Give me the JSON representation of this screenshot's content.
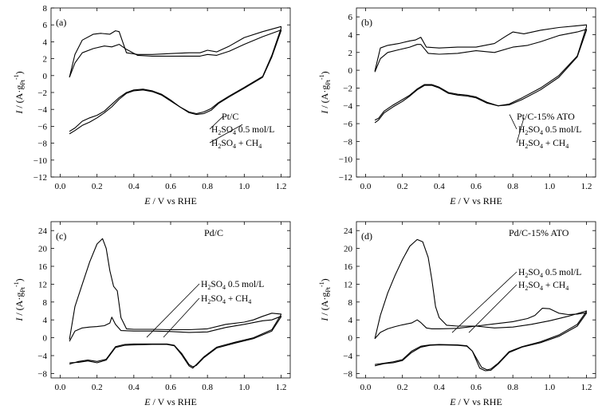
{
  "figure": {
    "description_free": true
  },
  "chart_data": [
    {
      "id": "a",
      "type": "line",
      "panel_label": "(a)",
      "sample": "Pt/C",
      "xlabel_var": "E",
      "xlabel_rest": " / V vs RHE",
      "ylabel_var": "I",
      "ylabel_unit": "(A·g",
      "ylabel_sub": "Pt",
      "ylabel_sup": "-1",
      "xlim": [
        -0.05,
        1.25
      ],
      "ylim": [
        -12,
        8
      ],
      "xticks": [
        0.0,
        0.2,
        0.4,
        0.6,
        0.8,
        1.0,
        1.2
      ],
      "xtick_labels": [
        "0.0",
        "0.2",
        "0.4",
        "0.6",
        "0.8",
        "1.0",
        "1.2"
      ],
      "yticks": [
        -12,
        -10,
        -8,
        -6,
        -4,
        -2,
        0,
        2,
        4,
        6,
        8
      ],
      "ytick_labels": [
        "−12",
        "−10",
        "−8",
        "−6",
        "−4",
        "−2",
        "0",
        "2",
        "4",
        "6",
        "8"
      ],
      "legend": [
        {
          "text": "H2SO4 0.5 mol/L",
          "sub_h": "2",
          "sub_o": "4",
          "base_a": "H",
          "base_b": "SO",
          "tail": " 0.5 mol/L"
        },
        {
          "text": "H2SO4 + CH4",
          "sub_h": "2",
          "sub_o": "4",
          "base_a": "H",
          "base_b": "SO",
          "tail": " + CH",
          "tail_sub": "4"
        }
      ],
      "series": [
        {
          "name": "H2SO4 0.5 mol/L",
          "x": [
            0.05,
            0.08,
            0.12,
            0.18,
            0.24,
            0.28,
            0.32,
            0.36,
            0.42,
            0.5,
            0.6,
            0.7,
            0.76,
            0.8,
            0.85,
            0.92,
            1.0,
            1.1,
            1.2,
            1.2,
            1.15,
            1.1,
            1.0,
            0.92,
            0.86,
            0.82,
            0.78,
            0.74,
            0.7,
            0.65,
            0.6,
            0.55,
            0.5,
            0.45,
            0.4,
            0.36,
            0.32,
            0.28,
            0.24,
            0.2,
            0.16,
            0.12,
            0.08,
            0.05
          ],
          "y": [
            -0.2,
            1.5,
            2.7,
            3.2,
            3.5,
            3.4,
            3.7,
            3.1,
            2.4,
            2.3,
            2.3,
            2.3,
            2.3,
            2.5,
            2.4,
            2.9,
            3.7,
            4.6,
            5.4,
            5.3,
            2.2,
            -0.2,
            -1.5,
            -2.5,
            -3.3,
            -4.1,
            -4.5,
            -4.6,
            -4.4,
            -3.7,
            -2.9,
            -2.2,
            -1.8,
            -1.6,
            -1.7,
            -2.0,
            -2.6,
            -3.4,
            -4.2,
            -4.7,
            -5.0,
            -5.4,
            -6.2,
            -6.6
          ]
        },
        {
          "name": "H2SO4 + CH4",
          "x": [
            0.05,
            0.08,
            0.12,
            0.18,
            0.22,
            0.27,
            0.3,
            0.32,
            0.36,
            0.42,
            0.5,
            0.6,
            0.7,
            0.76,
            0.8,
            0.85,
            0.92,
            1.0,
            1.1,
            1.2,
            1.2,
            1.15,
            1.1,
            1.0,
            0.92,
            0.86,
            0.82,
            0.78,
            0.74,
            0.7,
            0.65,
            0.6,
            0.55,
            0.5,
            0.45,
            0.4,
            0.36,
            0.32,
            0.28,
            0.24,
            0.2,
            0.16,
            0.12,
            0.08,
            0.05
          ],
          "y": [
            -0.2,
            2.5,
            4.2,
            4.9,
            5.0,
            4.9,
            5.3,
            5.2,
            2.7,
            2.5,
            2.5,
            2.6,
            2.7,
            2.7,
            3.0,
            2.8,
            3.5,
            4.5,
            5.2,
            5.8,
            5.6,
            2.4,
            -0.1,
            -1.4,
            -2.4,
            -3.2,
            -3.9,
            -4.3,
            -4.5,
            -4.3,
            -3.7,
            -3.0,
            -2.3,
            -1.9,
            -1.7,
            -1.8,
            -2.1,
            -2.8,
            -3.7,
            -4.4,
            -5.0,
            -5.5,
            -5.9,
            -6.5,
            -6.9
          ]
        }
      ]
    },
    {
      "id": "b",
      "type": "line",
      "panel_label": "(b)",
      "sample": "Pt/C-15% ATO",
      "xlabel_var": "E",
      "xlabel_rest": " / V vs RHE",
      "ylabel_var": "I",
      "ylabel_unit": "(A·g",
      "ylabel_sub": "Pt",
      "ylabel_sup": "-1",
      "xlim": [
        -0.05,
        1.25
      ],
      "ylim": [
        -12,
        7
      ],
      "xticks": [
        0.0,
        0.2,
        0.4,
        0.6,
        0.8,
        1.0,
        1.2
      ],
      "xtick_labels": [
        "0.0",
        "0.2",
        "0.4",
        "0.6",
        "0.8",
        "1.0",
        "1.2"
      ],
      "yticks": [
        -12,
        -10,
        -8,
        -6,
        -4,
        -2,
        0,
        2,
        4,
        6
      ],
      "ytick_labels": [
        "−12",
        "−10",
        "−8",
        "−6",
        "−4",
        "−2",
        "0",
        "2",
        "4",
        "6"
      ],
      "legend": [
        {
          "text": "H2SO4 0.5 mol/L",
          "sub_h": "2",
          "sub_o": "4",
          "base_a": "H",
          "base_b": "SO",
          "tail": " 0.5 mol/L"
        },
        {
          "text": "H2SO4 + CH4",
          "sub_h": "2",
          "sub_o": "4",
          "base_a": "H",
          "base_b": "SO",
          "tail": " + CH",
          "tail_sub": "4"
        }
      ],
      "series": [
        {
          "name": "H2SO4 0.5 mol/L",
          "x": [
            0.05,
            0.08,
            0.12,
            0.18,
            0.24,
            0.28,
            0.3,
            0.34,
            0.4,
            0.5,
            0.6,
            0.7,
            0.8,
            0.88,
            0.95,
            1.05,
            1.15,
            1.2,
            1.2,
            1.15,
            1.05,
            0.95,
            0.85,
            0.78,
            0.72,
            0.66,
            0.6,
            0.55,
            0.5,
            0.45,
            0.4,
            0.36,
            0.32,
            0.28,
            0.24,
            0.2,
            0.15,
            0.1,
            0.07,
            0.05
          ],
          "y": [
            -0.2,
            1.3,
            2.0,
            2.3,
            2.6,
            2.9,
            2.9,
            1.9,
            1.8,
            1.9,
            2.2,
            2.0,
            2.6,
            2.8,
            3.2,
            3.9,
            4.3,
            4.6,
            4.5,
            1.5,
            -0.8,
            -2.2,
            -3.3,
            -3.9,
            -4.0,
            -3.6,
            -3.0,
            -2.8,
            -2.7,
            -2.5,
            -1.9,
            -1.6,
            -1.6,
            -2.1,
            -2.8,
            -3.3,
            -3.9,
            -4.6,
            -5.4,
            -5.6
          ]
        },
        {
          "name": "H2SO4 + CH4",
          "x": [
            0.05,
            0.08,
            0.12,
            0.18,
            0.24,
            0.27,
            0.3,
            0.33,
            0.4,
            0.5,
            0.6,
            0.7,
            0.76,
            0.8,
            0.86,
            0.95,
            1.05,
            1.15,
            1.2,
            1.2,
            1.15,
            1.05,
            0.95,
            0.85,
            0.78,
            0.72,
            0.66,
            0.6,
            0.55,
            0.5,
            0.45,
            0.4,
            0.36,
            0.32,
            0.28,
            0.24,
            0.2,
            0.15,
            0.1,
            0.07,
            0.05
          ],
          "y": [
            -0.1,
            2.5,
            2.8,
            3.0,
            3.3,
            3.4,
            3.7,
            2.6,
            2.5,
            2.6,
            2.6,
            3.0,
            3.8,
            4.3,
            4.1,
            4.5,
            4.8,
            5.0,
            5.1,
            4.9,
            1.6,
            -0.6,
            -2.0,
            -3.1,
            -3.8,
            -4.0,
            -3.7,
            -3.1,
            -2.9,
            -2.8,
            -2.6,
            -2.0,
            -1.7,
            -1.7,
            -2.2,
            -2.9,
            -3.5,
            -4.1,
            -4.8,
            -5.6,
            -5.9
          ]
        }
      ]
    },
    {
      "id": "c",
      "type": "line",
      "panel_label": "(c)",
      "sample": "Pd/C",
      "xlabel_var": "E",
      "xlabel_rest": " / V vs RHE",
      "ylabel_var": "I",
      "ylabel_unit": "(A·g",
      "ylabel_sub": "Pt",
      "ylabel_sup": "-1",
      "xlim": [
        -0.05,
        1.25
      ],
      "ylim": [
        -9,
        26
      ],
      "xticks": [
        0.0,
        0.2,
        0.4,
        0.6,
        0.8,
        1.0,
        1.2
      ],
      "xtick_labels": [
        "0.0",
        "0.2",
        "0.4",
        "0.6",
        "0.8",
        "1.0",
        "1.2"
      ],
      "yticks": [
        -8,
        -4,
        0,
        4,
        8,
        12,
        16,
        20,
        24
      ],
      "ytick_labels": [
        "−8",
        "−4",
        "0",
        "4",
        "8",
        "12",
        "16",
        "20",
        "24"
      ],
      "legend": [
        {
          "text": "H2SO4 0.5 mol/L",
          "sub_h": "2",
          "sub_o": "4",
          "base_a": "H",
          "base_b": "SO",
          "tail": " 0.5 mol/L"
        },
        {
          "text": "H2SO4 + CH4",
          "sub_h": "2",
          "sub_o": "4",
          "base_a": "H",
          "base_b": "SO",
          "tail": " + CH",
          "tail_sub": "4"
        }
      ],
      "series": [
        {
          "name": "H2SO4 0.5 mol/L",
          "x": [
            0.05,
            0.08,
            0.12,
            0.16,
            0.2,
            0.24,
            0.27,
            0.28,
            0.3,
            0.33,
            0.4,
            0.5,
            0.6,
            0.7,
            0.8,
            0.9,
            1.0,
            1.1,
            1.15,
            1.2,
            1.2,
            1.15,
            1.05,
            0.95,
            0.85,
            0.78,
            0.74,
            0.72,
            0.7,
            0.66,
            0.62,
            0.58,
            0.5,
            0.4,
            0.35,
            0.3,
            0.25,
            0.2,
            0.15,
            0.1,
            0.05
          ],
          "y": [
            -0.8,
            1.5,
            2.2,
            2.4,
            2.5,
            2.7,
            3.3,
            4.6,
            3.0,
            1.6,
            1.5,
            1.5,
            1.4,
            1.2,
            1.3,
            2.3,
            3.0,
            3.8,
            4.0,
            4.8,
            4.7,
            1.5,
            -0.2,
            -1.2,
            -2.3,
            -4.5,
            -6.2,
            -6.5,
            -6.0,
            -3.5,
            -1.7,
            -1.4,
            -1.4,
            -1.4,
            -1.5,
            -2.0,
            -4.8,
            -5.3,
            -5.0,
            -5.3,
            -5.9
          ]
        },
        {
          "name": "H2SO4 + CH4",
          "x": [
            0.05,
            0.08,
            0.12,
            0.16,
            0.2,
            0.23,
            0.25,
            0.27,
            0.29,
            0.31,
            0.33,
            0.36,
            0.4,
            0.5,
            0.6,
            0.7,
            0.8,
            0.9,
            1.0,
            1.05,
            1.1,
            1.15,
            1.2,
            1.2,
            1.15,
            1.05,
            0.95,
            0.85,
            0.78,
            0.74,
            0.72,
            0.7,
            0.66,
            0.62,
            0.58,
            0.5,
            0.4,
            0.35,
            0.3,
            0.25,
            0.2,
            0.15,
            0.1,
            0.05
          ],
          "y": [
            -0.4,
            7.0,
            12.0,
            17.0,
            21.0,
            22.2,
            20.0,
            15.0,
            11.5,
            10.5,
            4.5,
            2.0,
            1.9,
            1.9,
            1.8,
            1.8,
            2.0,
            3.0,
            3.5,
            4.0,
            4.8,
            5.5,
            5.3,
            5.2,
            1.8,
            0.0,
            -1.0,
            -2.1,
            -4.3,
            -6.0,
            -6.8,
            -6.3,
            -3.8,
            -1.8,
            -1.5,
            -1.5,
            -1.6,
            -1.7,
            -2.2,
            -5.0,
            -5.6,
            -5.2,
            -5.5,
            -5.6
          ]
        }
      ]
    },
    {
      "id": "d",
      "type": "line",
      "panel_label": "(d)",
      "sample": "Pd/C-15% ATO",
      "xlabel_var": "E",
      "xlabel_rest": " / V vs RHE",
      "ylabel_var": "I",
      "ylabel_unit": "(A·g",
      "ylabel_sub": "Pt",
      "ylabel_sup": "-1",
      "xlim": [
        -0.05,
        1.25
      ],
      "ylim": [
        -9,
        26
      ],
      "xticks": [
        0.0,
        0.2,
        0.4,
        0.6,
        0.8,
        1.0,
        1.2
      ],
      "xtick_labels": [
        "0.0",
        "0.2",
        "0.4",
        "0.6",
        "0.8",
        "1.0",
        "1.2"
      ],
      "yticks": [
        -8,
        -4,
        0,
        4,
        8,
        12,
        16,
        20,
        24
      ],
      "ytick_labels": [
        "−8",
        "−4",
        "0",
        "4",
        "8",
        "12",
        "16",
        "20",
        "24"
      ],
      "legend": [
        {
          "text": "H2SO4 0.5 mol/L",
          "sub_h": "2",
          "sub_o": "4",
          "base_a": "H",
          "base_b": "SO",
          "tail": " 0.5 mol/L"
        },
        {
          "text": "H2SO4 + CH4",
          "sub_h": "2",
          "sub_o": "4",
          "base_a": "H",
          "base_b": "SO",
          "tail": " + CH",
          "tail_sub": "4"
        }
      ],
      "series": [
        {
          "name": "H2SO4 0.5 mol/L",
          "x": [
            0.05,
            0.08,
            0.12,
            0.16,
            0.2,
            0.25,
            0.28,
            0.3,
            0.33,
            0.36,
            0.4,
            0.5,
            0.6,
            0.7,
            0.8,
            0.88,
            0.92,
            0.96,
            1.0,
            1.05,
            1.1,
            1.15,
            1.2,
            1.2,
            1.15,
            1.05,
            0.95,
            0.85,
            0.78,
            0.72,
            0.68,
            0.65,
            0.62,
            0.58,
            0.55,
            0.5,
            0.4,
            0.35,
            0.3,
            0.25,
            0.2,
            0.15,
            0.1,
            0.05
          ],
          "y": [
            -0.2,
            1.2,
            2.0,
            2.5,
            2.9,
            3.3,
            4.0,
            3.4,
            2.2,
            2.0,
            2.0,
            2.1,
            2.6,
            3.1,
            3.6,
            4.3,
            5.0,
            6.6,
            6.5,
            5.5,
            5.2,
            5.3,
            5.6,
            5.5,
            2.6,
            0.3,
            -1.1,
            -2.1,
            -3.3,
            -5.9,
            -7.3,
            -7.4,
            -6.8,
            -3.0,
            -1.8,
            -1.6,
            -1.5,
            -1.6,
            -1.9,
            -3.0,
            -4.9,
            -5.4,
            -5.7,
            -6.0
          ]
        },
        {
          "name": "H2SO4 + CH4",
          "x": [
            0.05,
            0.08,
            0.12,
            0.16,
            0.2,
            0.24,
            0.28,
            0.31,
            0.34,
            0.36,
            0.38,
            0.4,
            0.44,
            0.5,
            0.6,
            0.7,
            0.8,
            0.9,
            1.0,
            1.1,
            1.2,
            1.2,
            1.15,
            1.05,
            0.95,
            0.85,
            0.78,
            0.72,
            0.68,
            0.66,
            0.63,
            0.58,
            0.55,
            0.5,
            0.4,
            0.35,
            0.3,
            0.25,
            0.2,
            0.15,
            0.1,
            0.05
          ],
          "y": [
            -0.2,
            5.0,
            10.0,
            14.0,
            17.5,
            20.5,
            22.0,
            21.5,
            18.0,
            13.0,
            7.0,
            4.5,
            2.8,
            2.6,
            2.6,
            2.2,
            2.4,
            3.0,
            3.8,
            4.8,
            6.0,
            5.9,
            3.0,
            0.6,
            -0.9,
            -2.0,
            -3.1,
            -5.7,
            -7.0,
            -7.2,
            -6.6,
            -3.0,
            -1.9,
            -1.7,
            -1.6,
            -1.7,
            -2.1,
            -3.3,
            -5.1,
            -5.6,
            -5.8,
            -6.3
          ]
        }
      ]
    }
  ]
}
